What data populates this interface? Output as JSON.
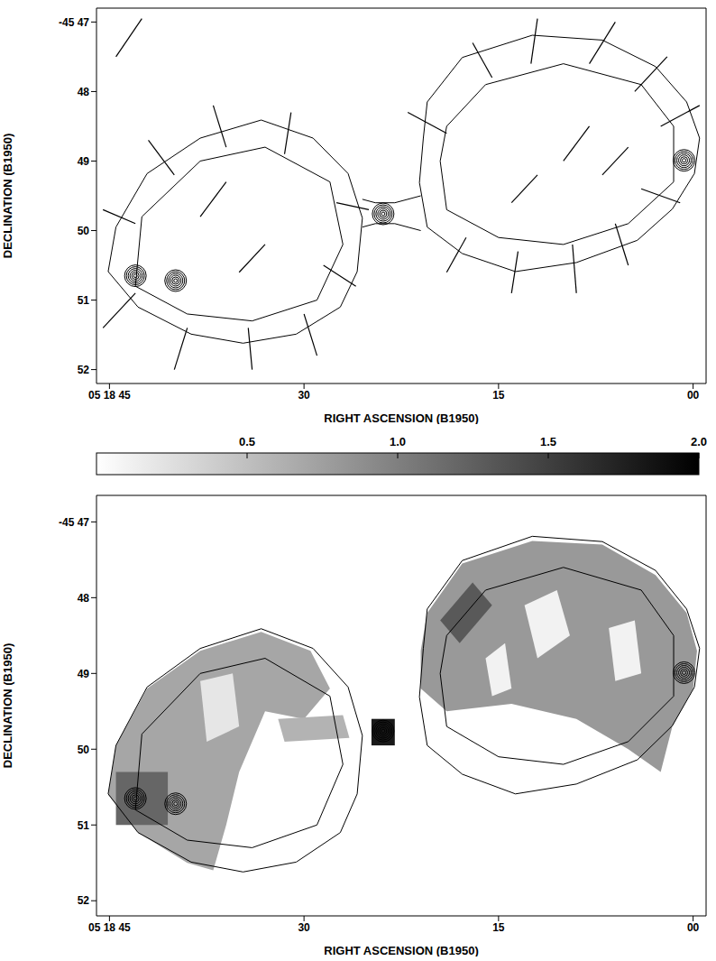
{
  "chart_data": [
    {
      "type": "contour",
      "xlabel": "RIGHT ASCENSION (B1950)",
      "ylabel": "DECLINATION (B1950)",
      "xlim": [
        46,
        -1
      ],
      "ylim": [
        52.2,
        46.8
      ],
      "xticks": [
        {
          "value": 45,
          "label": "05 18 45"
        },
        30,
        15,
        {
          "value": 0,
          "label": "00"
        }
      ],
      "yticks": [
        {
          "value": 47,
          "label": "-45 47"
        },
        48,
        49,
        50,
        51,
        52
      ],
      "contours": [
        [
          [
            20.5,
            48.15
          ],
          [
            17.8,
            47.51
          ],
          [
            12.4,
            47.19
          ],
          [
            7.0,
            47.26
          ],
          [
            2.9,
            47.64
          ],
          [
            0.5,
            48.15
          ],
          [
            -0.5,
            48.67
          ],
          [
            -0.1,
            49.18
          ],
          [
            1.6,
            49.69
          ],
          [
            4.3,
            50.14
          ],
          [
            9.0,
            50.46
          ],
          [
            13.7,
            50.59
          ],
          [
            17.8,
            50.33
          ],
          [
            20.5,
            49.95
          ],
          [
            21.1,
            49.31
          ],
          [
            20.8,
            48.67
          ],
          [
            20.5,
            48.15
          ]
        ],
        [
          [
            44.5,
            49.95
          ],
          [
            42.1,
            49.18
          ],
          [
            38.0,
            48.67
          ],
          [
            33.3,
            48.41
          ],
          [
            29.3,
            48.67
          ],
          [
            26.6,
            49.18
          ],
          [
            25.5,
            49.82
          ],
          [
            25.9,
            50.59
          ],
          [
            27.2,
            51.1
          ],
          [
            30.6,
            51.49
          ],
          [
            34.7,
            51.62
          ],
          [
            38.7,
            51.49
          ],
          [
            42.8,
            51.1
          ],
          [
            45.1,
            50.59
          ],
          [
            44.5,
            49.95
          ]
        ],
        [
          [
            19,
            48.5
          ],
          [
            16,
            47.9
          ],
          [
            10,
            47.6
          ],
          [
            4,
            47.9
          ],
          [
            1.5,
            48.5
          ],
          [
            1.5,
            49.3
          ],
          [
            5,
            49.9
          ],
          [
            10,
            50.2
          ],
          [
            15,
            50.1
          ],
          [
            19,
            49.7
          ],
          [
            19.5,
            49.0
          ],
          [
            19,
            48.5
          ]
        ],
        [
          [
            42.5,
            49.8
          ],
          [
            38,
            49.0
          ],
          [
            33,
            48.8
          ],
          [
            28,
            49.3
          ],
          [
            27,
            50.2
          ],
          [
            29,
            51.0
          ],
          [
            34,
            51.3
          ],
          [
            39,
            51.2
          ],
          [
            43,
            50.8
          ],
          [
            42.5,
            49.8
          ]
        ],
        [
          [
            25.5,
            49.55
          ],
          [
            24.5,
            49.6
          ],
          [
            23,
            49.6
          ],
          [
            21,
            49.5
          ]
        ],
        [
          [
            25.5,
            49.95
          ],
          [
            24.5,
            49.9
          ],
          [
            23,
            49.9
          ],
          [
            21,
            50.0
          ]
        ]
      ],
      "vectors": [
        [
          [
            12,
            46.95
          ],
          [
            12.5,
            47.6
          ]
        ],
        [
          [
            6,
            47.0
          ],
          [
            8,
            47.6
          ]
        ],
        [
          [
            17,
            47.3
          ],
          [
            15.5,
            47.8
          ]
        ],
        [
          [
            2,
            47.5
          ],
          [
            4.5,
            48.0
          ]
        ],
        [
          [
            -0.5,
            48.2
          ],
          [
            2.5,
            48.5
          ]
        ],
        [
          [
            1,
            49.6
          ],
          [
            4,
            49.4
          ]
        ],
        [
          [
            5,
            50.5
          ],
          [
            6,
            49.9
          ]
        ],
        [
          [
            9,
            50.9
          ],
          [
            9.3,
            50.2
          ]
        ],
        [
          [
            14,
            50.9
          ],
          [
            13.5,
            50.3
          ]
        ],
        [
          [
            19,
            50.6
          ],
          [
            17.5,
            50.1
          ]
        ],
        [
          [
            22,
            48.3
          ],
          [
            19,
            48.6
          ]
        ],
        [
          [
            8,
            48.5
          ],
          [
            10,
            49.0
          ]
        ],
        [
          [
            12,
            49.2
          ],
          [
            14,
            49.6
          ]
        ],
        [
          [
            5,
            48.8
          ],
          [
            7,
            49.2
          ]
        ],
        [
          [
            37,
            48.2
          ],
          [
            36,
            48.8
          ]
        ],
        [
          [
            31,
            48.3
          ],
          [
            31.5,
            48.9
          ]
        ],
        [
          [
            42,
            48.7
          ],
          [
            40,
            49.2
          ]
        ],
        [
          [
            45.5,
            49.7
          ],
          [
            43,
            49.9
          ]
        ],
        [
          [
            45.5,
            51.4
          ],
          [
            43,
            50.9
          ]
        ],
        [
          [
            40,
            52.0
          ],
          [
            39,
            51.4
          ]
        ],
        [
          [
            34,
            52.0
          ],
          [
            34.3,
            51.4
          ]
        ],
        [
          [
            29,
            51.8
          ],
          [
            30,
            51.2
          ]
        ],
        [
          [
            26,
            50.8
          ],
          [
            28.5,
            50.5
          ]
        ],
        [
          [
            36,
            49.3
          ],
          [
            38,
            49.8
          ]
        ],
        [
          [
            33,
            50.2
          ],
          [
            35,
            50.6
          ]
        ],
        [
          [
            25,
            49.7
          ],
          [
            27.5,
            49.6
          ]
        ],
        [
          [
            44.5,
            47.5
          ],
          [
            42.5,
            46.95
          ]
        ]
      ],
      "hotspots": [
        [
          23.9,
          49.76
        ],
        [
          0.7,
          48.99
        ],
        [
          43.0,
          50.65
        ],
        [
          39.9,
          50.72
        ]
      ]
    },
    {
      "type": "image",
      "xlabel": "RIGHT ASCENSION (B1950)",
      "ylabel": "DECLINATION (B1950)",
      "xlim": [
        46,
        -1
      ],
      "ylim": [
        52.2,
        46.65
      ],
      "xticks": [
        {
          "value": 45,
          "label": "05 18 45"
        },
        30,
        15,
        {
          "value": 0,
          "label": "00"
        }
      ],
      "yticks": [
        {
          "value": 47,
          "label": "-45 47"
        },
        48,
        49,
        50,
        51,
        52
      ],
      "colorbar": {
        "range": [
          0,
          2
        ],
        "ticks": [
          0.5,
          {
            "value": 1,
            "label": "1.0"
          },
          1.5,
          {
            "value": 2,
            "label": "2.0"
          }
        ]
      },
      "patches": [
        {
          "value": 0.8,
          "points": [
            [
              20.5,
              48.2
            ],
            [
              17.8,
              47.55
            ],
            [
              12.4,
              47.25
            ],
            [
              7,
              47.3
            ],
            [
              2.9,
              47.7
            ],
            [
              0.5,
              48.2
            ],
            [
              -0.3,
              48.7
            ],
            [
              0,
              49.2
            ],
            [
              1.6,
              49.7
            ],
            [
              2.5,
              50.3
            ],
            [
              5,
              50.0
            ],
            [
              9,
              49.6
            ],
            [
              14,
              49.4
            ],
            [
              19,
              49.5
            ],
            [
              21,
              49.2
            ],
            [
              21,
              48.7
            ]
          ]
        },
        {
          "value": 0.1,
          "points": [
            [
              13,
              48.1
            ],
            [
              10.5,
              47.9
            ],
            [
              9.5,
              48.5
            ],
            [
              12,
              48.8
            ]
          ]
        },
        {
          "value": 0.1,
          "points": [
            [
              6.5,
              48.4
            ],
            [
              4.5,
              48.3
            ],
            [
              4,
              49.0
            ],
            [
              6,
              49.1
            ]
          ]
        },
        {
          "value": 0.1,
          "points": [
            [
              16,
              48.8
            ],
            [
              14.5,
              48.6
            ],
            [
              14,
              49.2
            ],
            [
              15.5,
              49.3
            ]
          ]
        },
        {
          "value": 1.3,
          "points": [
            [
              19.5,
              48.3
            ],
            [
              17,
              47.8
            ],
            [
              15.5,
              48.1
            ],
            [
              18,
              48.6
            ]
          ]
        },
        {
          "value": 0.7,
          "points": [
            [
              44.5,
              49.95
            ],
            [
              42.1,
              49.2
            ],
            [
              38,
              48.7
            ],
            [
              33.3,
              48.45
            ],
            [
              29.5,
              48.7
            ],
            [
              28,
              49.2
            ],
            [
              30,
              49.6
            ],
            [
              33,
              49.5
            ],
            [
              35,
              50.3
            ],
            [
              36,
              51.0
            ],
            [
              37,
              51.6
            ],
            [
              39,
              51.5
            ],
            [
              42.8,
              51.1
            ],
            [
              45.1,
              50.6
            ]
          ]
        },
        {
          "value": 0.2,
          "points": [
            [
              38,
              49.1
            ],
            [
              35.5,
              49.0
            ],
            [
              35,
              49.7
            ],
            [
              37.5,
              49.9
            ]
          ]
        },
        {
          "value": 1.2,
          "points": [
            [
              44.5,
              50.3
            ],
            [
              40.5,
              50.3
            ],
            [
              40.5,
              51.0
            ],
            [
              44.5,
              51.0
            ]
          ]
        },
        {
          "value": 0.6,
          "points": [
            [
              32,
              49.6
            ],
            [
              27,
              49.55
            ],
            [
              26.5,
              49.85
            ],
            [
              31.5,
              49.9
            ]
          ]
        },
        {
          "value": 1.8,
          "points": [
            [
              24.8,
              49.6
            ],
            [
              23,
              49.6
            ],
            [
              23,
              49.95
            ],
            [
              24.8,
              49.95
            ]
          ]
        }
      ],
      "contours": [
        [
          [
            20.5,
            48.15
          ],
          [
            17.8,
            47.51
          ],
          [
            12.4,
            47.19
          ],
          [
            7.0,
            47.26
          ],
          [
            2.9,
            47.64
          ],
          [
            0.5,
            48.15
          ],
          [
            -0.5,
            48.67
          ],
          [
            -0.1,
            49.18
          ],
          [
            1.6,
            49.69
          ],
          [
            4.3,
            50.14
          ],
          [
            9.0,
            50.46
          ],
          [
            13.7,
            50.59
          ],
          [
            17.8,
            50.33
          ],
          [
            20.5,
            49.95
          ],
          [
            21.1,
            49.31
          ],
          [
            20.8,
            48.67
          ],
          [
            20.5,
            48.15
          ]
        ],
        [
          [
            44.5,
            49.95
          ],
          [
            42.1,
            49.18
          ],
          [
            38.0,
            48.67
          ],
          [
            33.3,
            48.41
          ],
          [
            29.3,
            48.67
          ],
          [
            26.6,
            49.18
          ],
          [
            25.5,
            49.82
          ],
          [
            25.9,
            50.59
          ],
          [
            27.2,
            51.1
          ],
          [
            30.6,
            51.49
          ],
          [
            34.7,
            51.62
          ],
          [
            38.7,
            51.49
          ],
          [
            42.8,
            51.1
          ],
          [
            45.1,
            50.59
          ],
          [
            44.5,
            49.95
          ]
        ],
        [
          [
            19,
            48.5
          ],
          [
            16,
            47.9
          ],
          [
            10,
            47.6
          ],
          [
            4,
            47.9
          ],
          [
            1.5,
            48.5
          ],
          [
            1.5,
            49.3
          ],
          [
            5,
            49.9
          ],
          [
            10,
            50.2
          ],
          [
            15,
            50.1
          ],
          [
            19,
            49.7
          ],
          [
            19.5,
            49.0
          ],
          [
            19,
            48.5
          ]
        ],
        [
          [
            42.5,
            49.8
          ],
          [
            38,
            49.0
          ],
          [
            33,
            48.8
          ],
          [
            28,
            49.3
          ],
          [
            27,
            50.2
          ],
          [
            29,
            51.0
          ],
          [
            34,
            51.3
          ],
          [
            39,
            51.2
          ],
          [
            43,
            50.8
          ],
          [
            42.5,
            49.8
          ]
        ]
      ],
      "hotspots": [
        [
          23.9,
          49.76
        ],
        [
          0.7,
          48.99
        ],
        [
          43.0,
          50.65
        ],
        [
          39.9,
          50.72
        ]
      ]
    }
  ]
}
